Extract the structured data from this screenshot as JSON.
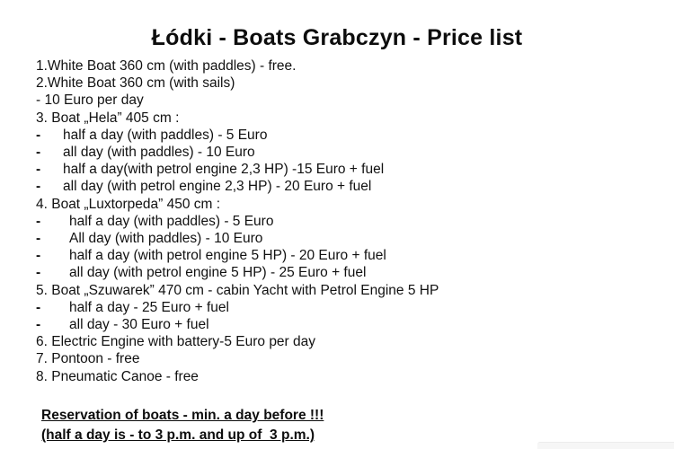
{
  "title": "Łódki - Boats Grabczyn - Price list",
  "dash": "-",
  "lines": [
    "1.White Boat 360 cm (with paddles) - free.",
    "2.White Boat 360 cm (with sails)",
    "- 10 Euro per day",
    "3. Boat „Hela” 405 cm :",
    "half a day (with paddles) - 5 Euro",
    "all day (with paddles) - 10 Euro",
    "half a day(with petrol engine 2,3 HP) -15 Euro + fuel",
    "all day (with petrol engine 2,3 HP) - 20 Euro + fuel",
    "4. Boat „Luxtorpeda” 450 cm :",
    "half a day (with paddles) - 5 Euro",
    "All day (with paddles) - 10 Euro",
    "half a day (with petrol engine 5 HP) - 20 Euro + fuel",
    "all day (with petrol engine 5 HP) - 25 Euro + fuel",
    "5. Boat „Szuwarek” 470 cm - cabin Yacht with Petrol Engine 5 HP",
    "half a day - 25 Euro + fuel",
    "all day - 30 Euro + fuel",
    "6. Electric Engine with battery-5 Euro per day",
    "7. Pontoon - free",
    "8. Pneumatic Canoe - free"
  ],
  "footer": [
    "Reservation of boats - min. a day before !!!",
    "(half a day is - to 3 p.m. and up of  3 p.m.)"
  ],
  "colors": {
    "text": "#111111",
    "background": "#ffffff",
    "bottom_strip": "#f6f6f6"
  }
}
